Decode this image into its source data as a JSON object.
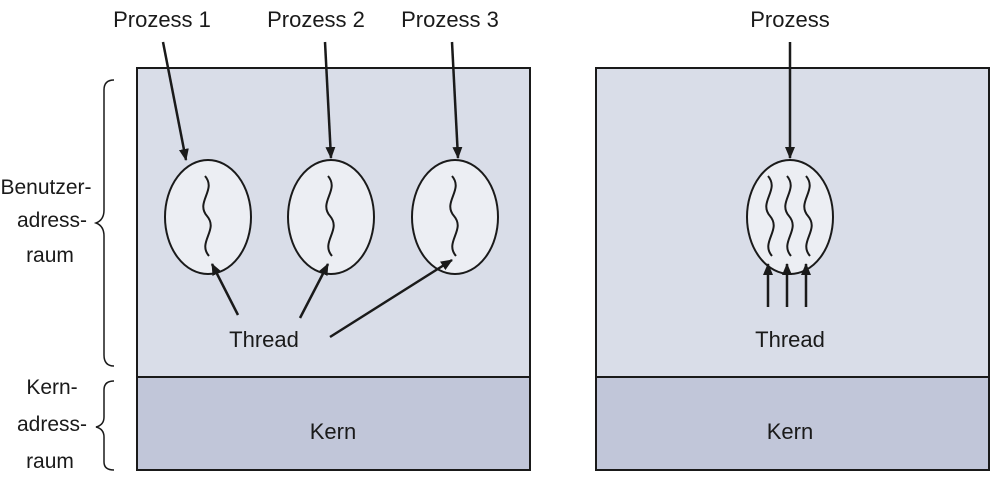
{
  "left_panel": {
    "process_labels": [
      "Prozess 1",
      "Prozess 2",
      "Prozess 3"
    ],
    "thread_label": "Thread",
    "kernel_label": "Kern"
  },
  "right_panel": {
    "process_label": "Prozess",
    "thread_label": "Thread",
    "kernel_label": "Kern"
  },
  "side_labels": {
    "user_space": [
      "Benutzer-",
      "adress-",
      "raum"
    ],
    "kernel_space": [
      "Kern-",
      "adress-",
      "raum"
    ]
  },
  "colors": {
    "user_space_fill": "#d9dde8",
    "kernel_fill": "#c1c6d9",
    "process_fill": "#eceef3",
    "stroke": "#1a1a1a"
  }
}
